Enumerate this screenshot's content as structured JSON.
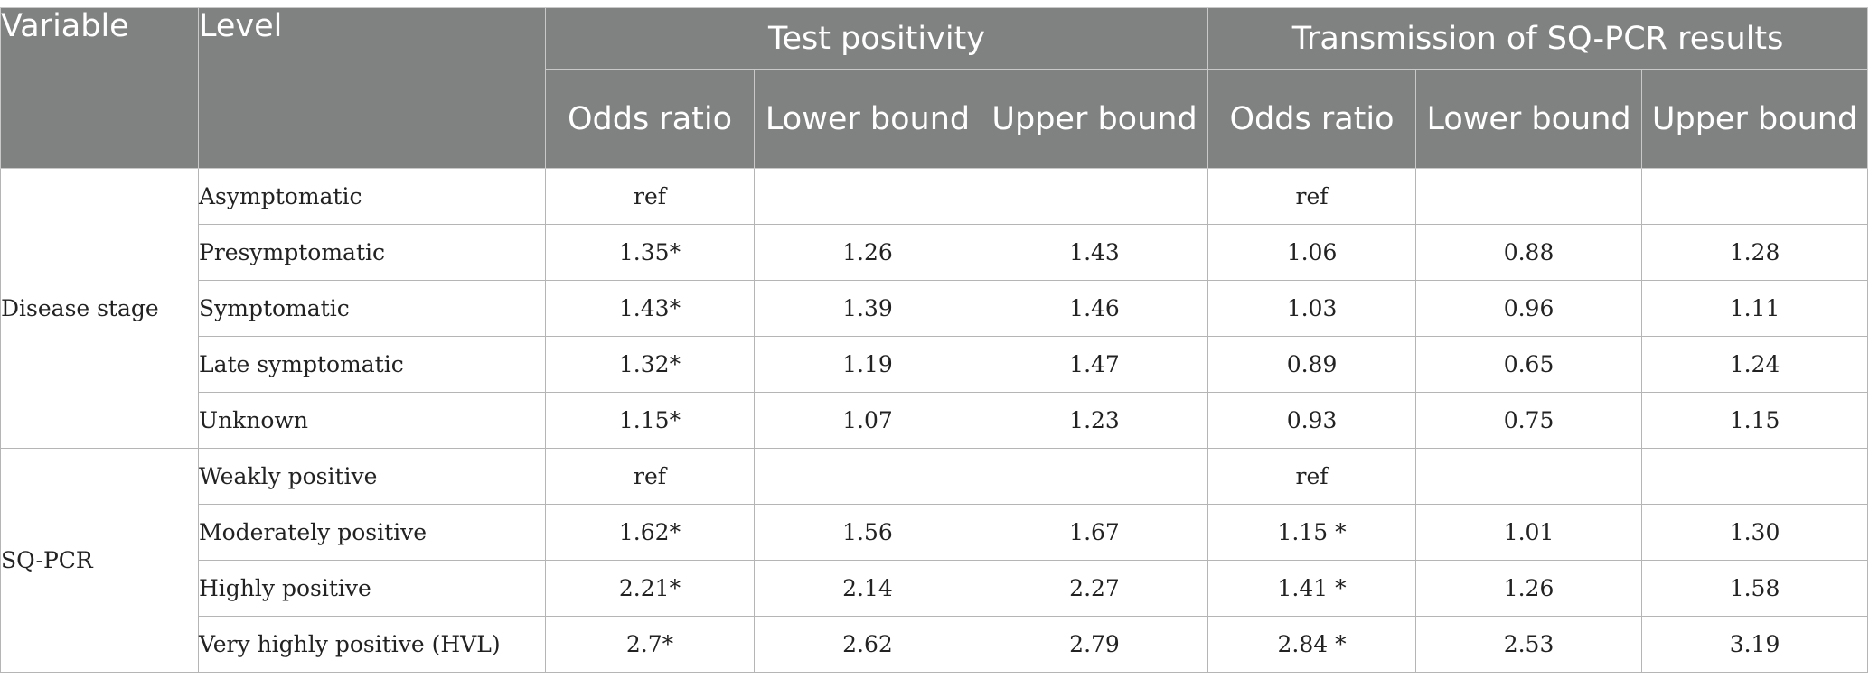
{
  "header": {
    "variable": "Variable",
    "level": "Level",
    "group1": "Test positivity",
    "group2": "Transmission of SQ-PCR results",
    "sub": [
      "Odds ratio",
      "Lower bound",
      "Upper bound",
      "Odds ratio",
      "Lower bound",
      "Upper bound"
    ]
  },
  "groups": [
    {
      "variable": "Disease stage",
      "rows": [
        {
          "level": "Asymptomatic",
          "tp_or": "ref",
          "tp_lo": "",
          "tp_hi": "",
          "tr_or": "ref",
          "tr_lo": "",
          "tr_hi": ""
        },
        {
          "level": "Presymptomatic",
          "tp_or": "1.35*",
          "tp_lo": "1.26",
          "tp_hi": "1.43",
          "tr_or": "1.06",
          "tr_lo": "0.88",
          "tr_hi": "1.28"
        },
        {
          "level": "Symptomatic",
          "tp_or": "1.43*",
          "tp_lo": "1.39",
          "tp_hi": "1.46",
          "tr_or": "1.03",
          "tr_lo": "0.96",
          "tr_hi": "1.11"
        },
        {
          "level": "Late symptomatic",
          "tp_or": "1.32*",
          "tp_lo": "1.19",
          "tp_hi": "1.47",
          "tr_or": "0.89",
          "tr_lo": "0.65",
          "tr_hi": "1.24"
        },
        {
          "level": "Unknown",
          "tp_or": "1.15*",
          "tp_lo": "1.07",
          "tp_hi": "1.23",
          "tr_or": "0.93",
          "tr_lo": "0.75",
          "tr_hi": "1.15"
        }
      ]
    },
    {
      "variable": "SQ-PCR",
      "rows": [
        {
          "level": "Weakly positive",
          "tp_or": "ref",
          "tp_lo": "",
          "tp_hi": "",
          "tr_or": "ref",
          "tr_lo": "",
          "tr_hi": ""
        },
        {
          "level": "Moderately positive",
          "tp_or": "1.62*",
          "tp_lo": "1.56",
          "tp_hi": "1.67",
          "tr_or": "1.15 *",
          "tr_lo": "1.01",
          "tr_hi": "1.30"
        },
        {
          "level": "Highly positive",
          "tp_or": "2.21*",
          "tp_lo": "2.14",
          "tp_hi": "2.27",
          "tr_or": "1.41 *",
          "tr_lo": "1.26",
          "tr_hi": "1.58"
        },
        {
          "level": "Very highly positive (HVL)",
          "tp_or": "2.7*",
          "tp_lo": "2.62",
          "tp_hi": "2.79",
          "tr_or": "2.84 *",
          "tr_lo": "2.53",
          "tr_hi": "3.19"
        }
      ]
    }
  ]
}
